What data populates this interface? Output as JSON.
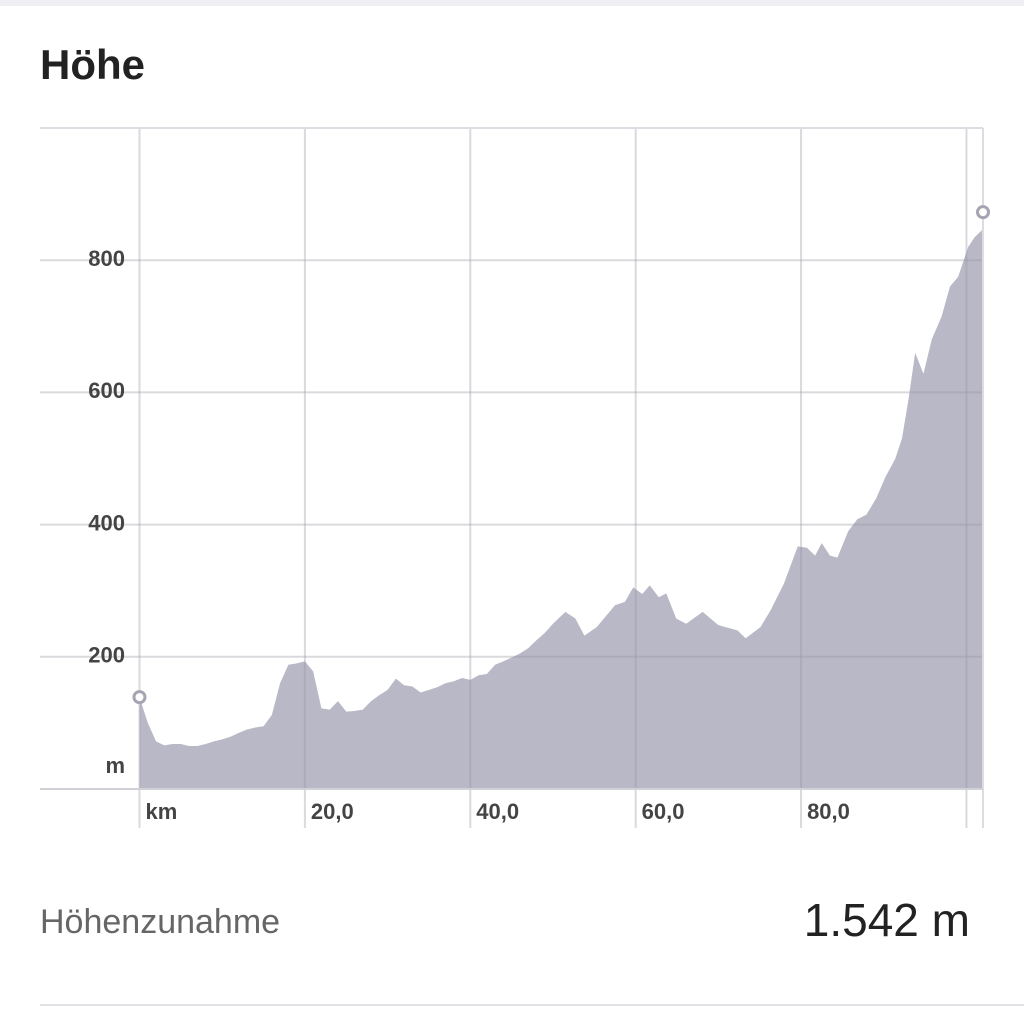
{
  "chart_data": {
    "type": "area",
    "title": "Höhe",
    "x": [
      0,
      1,
      2,
      3,
      4,
      5,
      6,
      7,
      8,
      9,
      10,
      11,
      12,
      13,
      14,
      15,
      16,
      17,
      18,
      19,
      20,
      21,
      22,
      23,
      24,
      25,
      26,
      27,
      28,
      29,
      30,
      31,
      32,
      33,
      34,
      35,
      36,
      37,
      38,
      39,
      40,
      41,
      42,
      43,
      44,
      45,
      46,
      47,
      48,
      49,
      50,
      51.5,
      52.7,
      53.8,
      55.3,
      57.5,
      58.7,
      59.7,
      60.8,
      61.7,
      62.8,
      63.7,
      64.9,
      66.1,
      68.1,
      70,
      72.3,
      73.3,
      75.1,
      76.3,
      77.9,
      79.6,
      80.7,
      81.7,
      82.5,
      83.5,
      84.4,
      85.7,
      86.8,
      87.9,
      89.1,
      90.2,
      91.4,
      92.2,
      93,
      93.8,
      94.8,
      95.8,
      97,
      98,
      99,
      100.2,
      101,
      102
    ],
    "values": [
      139,
      100,
      72,
      66,
      68,
      68,
      65,
      65,
      68,
      72,
      75,
      79,
      85,
      90,
      93,
      95,
      112,
      160,
      188,
      190,
      193,
      178,
      122,
      120,
      133,
      117,
      118,
      120,
      133,
      142,
      150,
      167,
      157,
      155,
      146,
      150,
      154,
      160,
      163,
      168,
      165,
      172,
      174,
      188,
      193,
      199,
      205,
      213,
      225,
      236,
      250,
      268,
      258,
      232,
      245,
      278,
      283,
      305,
      295,
      308,
      290,
      296,
      258,
      250,
      268,
      248,
      240,
      228,
      245,
      270,
      310,
      367,
      365,
      353,
      372,
      353,
      350,
      390,
      408,
      415,
      440,
      472,
      500,
      530,
      590,
      660,
      628,
      680,
      715,
      760,
      775,
      820,
      835,
      847
    ],
    "color": "#b9b8c6",
    "xlim": [
      0,
      102
    ],
    "ylim": [
      0,
      1000
    ],
    "xticks": [
      {
        "value": 0,
        "label": "km"
      },
      {
        "value": 20,
        "label": "20,0"
      },
      {
        "value": 40,
        "label": "40,0"
      },
      {
        "value": 60,
        "label": "60,0"
      },
      {
        "value": 80,
        "label": "80,0"
      },
      {
        "value": 100,
        "label": null
      }
    ],
    "yticks": [
      {
        "value": 0,
        "label": "m"
      },
      200,
      400,
      600,
      800
    ],
    "grid": true
  },
  "stats": {
    "label": "Höhenzunahme",
    "value": "1.542 m"
  }
}
